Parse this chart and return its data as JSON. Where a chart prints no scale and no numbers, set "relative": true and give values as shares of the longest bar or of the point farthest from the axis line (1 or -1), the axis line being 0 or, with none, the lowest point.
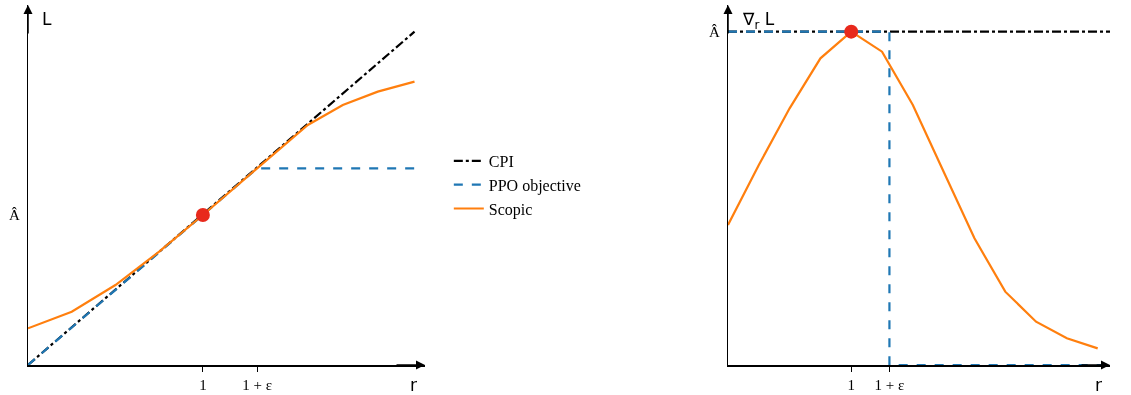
{
  "chart_data": [
    {
      "type": "line",
      "relative": true,
      "xlabel": "r",
      "ylabel": "L",
      "xlim": [
        0,
        2.27
      ],
      "xticks": [
        1,
        {
          "value": 1.31,
          "label": "1 + ε"
        }
      ],
      "annotations": [
        "Â"
      ],
      "grid": false,
      "legend": "right",
      "marker": "none",
      "series": [
        {
          "name": "CPI",
          "color": "#000000",
          "line_style": "dashdot",
          "x": [
            0,
            2.21
          ],
          "values": [
            0,
            1
          ]
        },
        {
          "name": "PPO objective",
          "color": "#1f77b4",
          "line_style": "dashed",
          "x": [
            0,
            1.31,
            2.21
          ],
          "values": [
            0,
            0.59,
            0.59
          ]
        },
        {
          "name": "Scopic",
          "color": "#ff7f0e",
          "line_style": "solid",
          "x": [
            0,
            0.25,
            0.5,
            0.75,
            1,
            1.31,
            1.6,
            1.8,
            2.0,
            2.21
          ],
          "values": [
            0.11,
            0.16,
            0.24,
            0.34,
            0.45,
            0.59,
            0.72,
            0.78,
            0.82,
            0.85
          ]
        },
        {
          "type": "scatter",
          "color": "#e8291c",
          "marker": "circle",
          "x": [
            1
          ],
          "values": [
            0.45
          ]
        }
      ]
    },
    {
      "type": "line",
      "relative": true,
      "xlabel": "r",
      "ylabel": "∇$_{r}$ L",
      "xlim": [
        0,
        3.1
      ],
      "xticks": [
        1,
        {
          "value": 1.31,
          "label": "1 + ε"
        }
      ],
      "annotations": [
        "Â"
      ],
      "grid": false,
      "legend": false,
      "marker": "none",
      "series": [
        {
          "color": "#000000",
          "line_style": "dashdot",
          "x": [
            0,
            3.1
          ],
          "values": [
            1,
            1
          ]
        },
        {
          "color": "#1f77b4",
          "line_style": "dashed",
          "x": [
            0,
            1.31,
            1.31,
            3.1
          ],
          "values": [
            1,
            1,
            0,
            0
          ]
        },
        {
          "color": "#ff7f0e",
          "line_style": "solid",
          "x": [
            0,
            0.25,
            0.5,
            0.75,
            1,
            1.25,
            1.5,
            1.75,
            2,
            2.25,
            2.5,
            2.75,
            3.0
          ],
          "values": [
            0.42,
            0.6,
            0.77,
            0.92,
            1,
            0.94,
            0.78,
            0.58,
            0.38,
            0.22,
            0.13,
            0.08,
            0.05
          ]
        },
        {
          "type": "scatter",
          "color": "#e8291c",
          "marker": "circle",
          "x": [
            1
          ],
          "values": [
            1
          ]
        }
      ]
    }
  ]
}
